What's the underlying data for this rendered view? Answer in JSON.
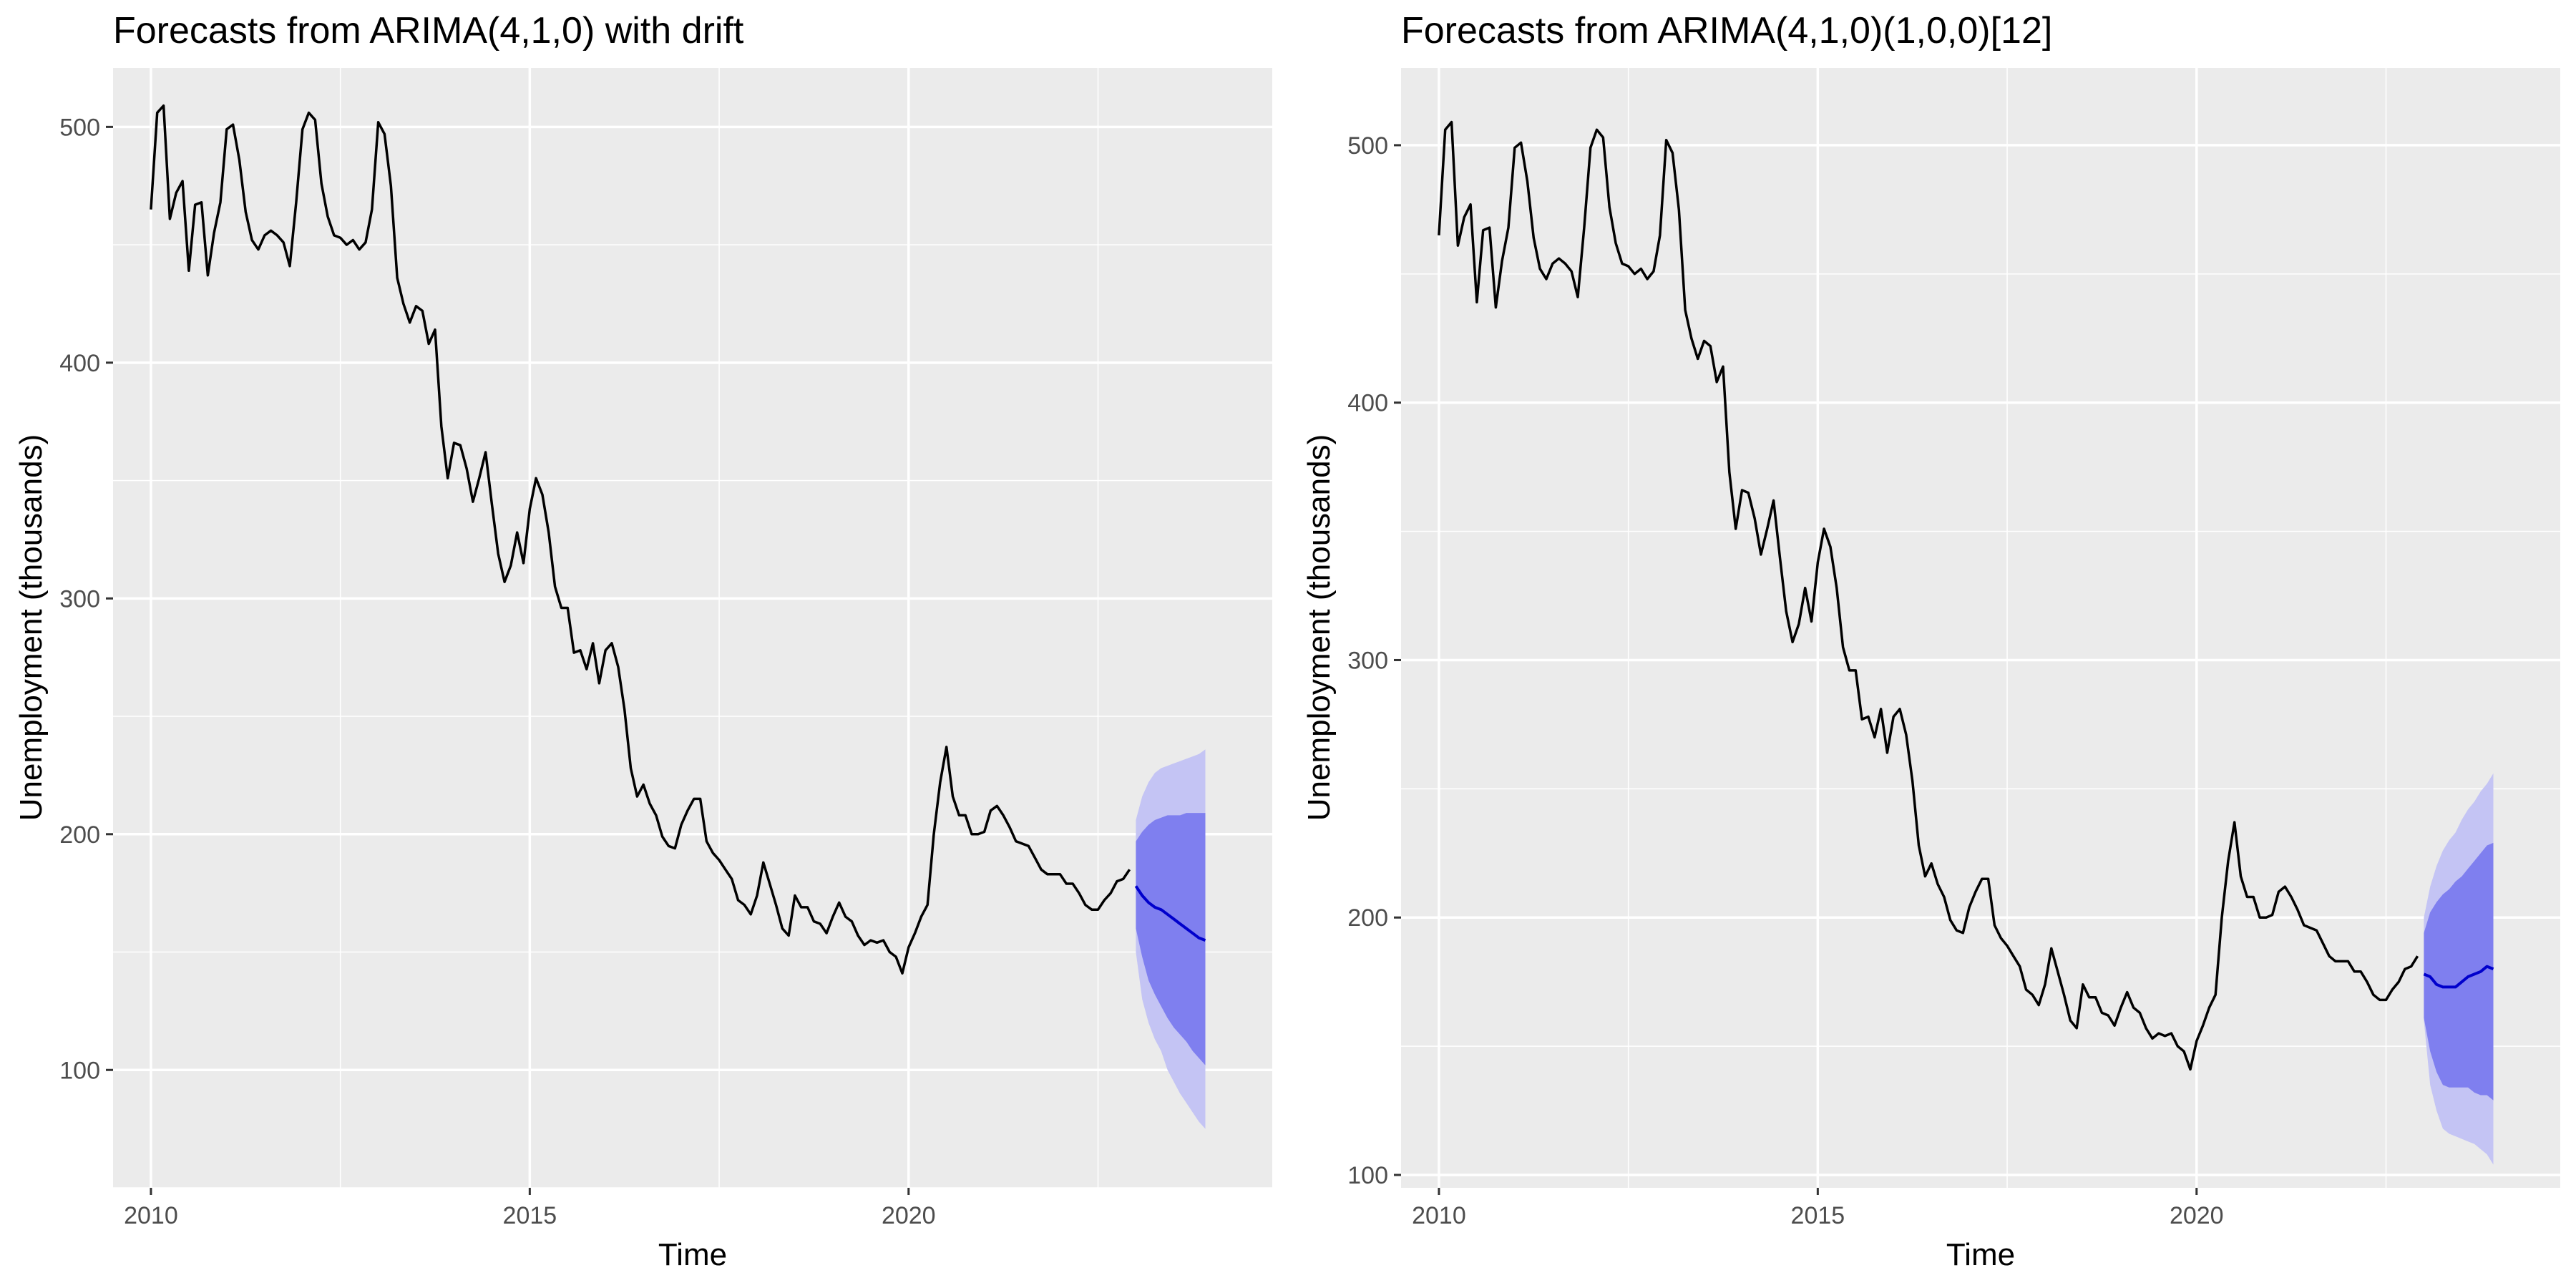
{
  "chart_data": [
    {
      "type": "line",
      "title": "Forecasts from ARIMA(4,1,0) with drift",
      "xlabel": "Time",
      "ylabel": "Unemployment (thousands)",
      "xlim": [
        2009.5,
        2024.8
      ],
      "ylim": [
        50,
        525
      ],
      "x_ticks": [
        2010,
        2015,
        2020
      ],
      "x_tick_labels": [
        "2010",
        "2015",
        "2020"
      ],
      "y_ticks": [
        100,
        200,
        300,
        400,
        500
      ],
      "y_tick_labels": [
        "100",
        "200",
        "300",
        "400",
        "500"
      ],
      "grid": true,
      "colors": {
        "panel": "#ebebeb",
        "grid": "#ffffff",
        "history": "#000000",
        "forecast": "#0000cc",
        "band80": "#7f7fef",
        "band95": "#c4c4f4"
      },
      "series": [
        {
          "role": "history",
          "x": [
            2010.0,
            2010.083,
            2010.167,
            2010.25,
            2010.333,
            2010.417,
            2010.5,
            2010.583,
            2010.667,
            2010.75,
            2010.833,
            2010.917,
            2011.0,
            2011.083,
            2011.167,
            2011.25,
            2011.333,
            2011.417,
            2011.5,
            2011.583,
            2011.667,
            2011.75,
            2011.833,
            2011.917,
            2012.0,
            2012.083,
            2012.167,
            2012.25,
            2012.333,
            2012.417,
            2012.5,
            2012.583,
            2012.667,
            2012.75,
            2012.833,
            2012.917,
            2013.0,
            2013.083,
            2013.167,
            2013.25,
            2013.333,
            2013.417,
            2013.5,
            2013.583,
            2013.667,
            2013.75,
            2013.833,
            2013.917,
            2014.0,
            2014.083,
            2014.167,
            2014.25,
            2014.333,
            2014.417,
            2014.5,
            2014.583,
            2014.667,
            2014.75,
            2014.833,
            2014.917,
            2015.0,
            2015.083,
            2015.167,
            2015.25,
            2015.333,
            2015.417,
            2015.5,
            2015.583,
            2015.667,
            2015.75,
            2015.833,
            2015.917,
            2016.0,
            2016.083,
            2016.167,
            2016.25,
            2016.333,
            2016.417,
            2016.5,
            2016.583,
            2016.667,
            2016.75,
            2016.833,
            2016.917,
            2017.0,
            2017.083,
            2017.167,
            2017.25,
            2017.333,
            2017.417,
            2017.5,
            2017.583,
            2017.667,
            2017.75,
            2017.833,
            2017.917,
            2018.0,
            2018.083,
            2018.167,
            2018.25,
            2018.333,
            2018.417,
            2018.5,
            2018.583,
            2018.667,
            2018.75,
            2018.833,
            2018.917,
            2019.0,
            2019.083,
            2019.167,
            2019.25,
            2019.333,
            2019.417,
            2019.5,
            2019.583,
            2019.667,
            2019.75,
            2019.833,
            2019.917,
            2020.0,
            2020.083,
            2020.167,
            2020.25,
            2020.333,
            2020.417,
            2020.5,
            2020.583,
            2020.667,
            2020.75,
            2020.833,
            2020.917,
            2021.0,
            2021.083,
            2021.167,
            2021.25,
            2021.333,
            2021.417,
            2021.5,
            2021.583,
            2021.667,
            2021.75,
            2021.833,
            2021.917,
            2022.0,
            2022.083,
            2022.167,
            2022.25,
            2022.333,
            2022.417,
            2022.5,
            2022.583,
            2022.667,
            2022.75,
            2022.833,
            2022.917
          ],
          "y": [
            465,
            506,
            509,
            461,
            472,
            477,
            439,
            467,
            468,
            437,
            455,
            468,
            499,
            501,
            486,
            464,
            452,
            448,
            454,
            456,
            454,
            451,
            441,
            468,
            499,
            506,
            503,
            476,
            462,
            454,
            453,
            450,
            452,
            448,
            451,
            465,
            502,
            497,
            475,
            436,
            425,
            417,
            424,
            422,
            408,
            414,
            373,
            351,
            366,
            365,
            355,
            341,
            351,
            362,
            340,
            319,
            307,
            314,
            328,
            315,
            338,
            351,
            344,
            328,
            305,
            296,
            296,
            277,
            278,
            270,
            281,
            264,
            278,
            281,
            271,
            253,
            228,
            216,
            221,
            213,
            208,
            199,
            195,
            194,
            204,
            210,
            215,
            215,
            197,
            192,
            189,
            185,
            181,
            172,
            170,
            166,
            174,
            188,
            179,
            170,
            160,
            157,
            174,
            169,
            169,
            163,
            162,
            158,
            165,
            171,
            165,
            163,
            157,
            153,
            155,
            154,
            155,
            150,
            148,
            141,
            152,
            158,
            165,
            170,
            200,
            222,
            237,
            216,
            208,
            208,
            200,
            200,
            201,
            210,
            212,
            208,
            203,
            197,
            196,
            195,
            190,
            185,
            183,
            183,
            183,
            179,
            179,
            175,
            170,
            168,
            168,
            172,
            175,
            180,
            181,
            185
          ]
        },
        {
          "role": "forecast",
          "x": [
            2023.0,
            2023.083,
            2023.167,
            2023.25,
            2023.333,
            2023.417,
            2023.5,
            2023.583,
            2023.667,
            2023.75,
            2023.833,
            2023.917
          ],
          "y": [
            178,
            174,
            171,
            169,
            168,
            166,
            164,
            162,
            160,
            158,
            156,
            155
          ],
          "lo80": [
            160,
            148,
            138,
            132,
            127,
            122,
            118,
            115,
            112,
            108,
            105,
            102
          ],
          "hi80": [
            197,
            201,
            204,
            206,
            207,
            208,
            208,
            208,
            209,
            209,
            209,
            209
          ],
          "lo95": [
            150,
            130,
            120,
            113,
            108,
            100,
            95,
            90,
            86,
            82,
            78,
            75
          ],
          "hi95": [
            206,
            216,
            222,
            226,
            228,
            229,
            230,
            231,
            232,
            233,
            234,
            236
          ]
        }
      ]
    },
    {
      "type": "line",
      "title": "Forecasts from ARIMA(4,1,0)(1,0,0)[12]",
      "xlabel": "Time",
      "ylabel": "Unemployment (thousands)",
      "xlim": [
        2009.5,
        2024.8
      ],
      "ylim": [
        95,
        530
      ],
      "x_ticks": [
        2010,
        2015,
        2020
      ],
      "x_tick_labels": [
        "2010",
        "2015",
        "2020"
      ],
      "y_ticks": [
        100,
        200,
        300,
        400,
        500
      ],
      "y_tick_labels": [
        "100",
        "200",
        "300",
        "400",
        "500"
      ],
      "grid": true,
      "colors": {
        "panel": "#ebebeb",
        "grid": "#ffffff",
        "history": "#000000",
        "forecast": "#0000cc",
        "band80": "#7f7fef",
        "band95": "#c4c4f4"
      },
      "series": [
        {
          "role": "history",
          "x": [
            2010.0,
            2010.083,
            2010.167,
            2010.25,
            2010.333,
            2010.417,
            2010.5,
            2010.583,
            2010.667,
            2010.75,
            2010.833,
            2010.917,
            2011.0,
            2011.083,
            2011.167,
            2011.25,
            2011.333,
            2011.417,
            2011.5,
            2011.583,
            2011.667,
            2011.75,
            2011.833,
            2011.917,
            2012.0,
            2012.083,
            2012.167,
            2012.25,
            2012.333,
            2012.417,
            2012.5,
            2012.583,
            2012.667,
            2012.75,
            2012.833,
            2012.917,
            2013.0,
            2013.083,
            2013.167,
            2013.25,
            2013.333,
            2013.417,
            2013.5,
            2013.583,
            2013.667,
            2013.75,
            2013.833,
            2013.917,
            2014.0,
            2014.083,
            2014.167,
            2014.25,
            2014.333,
            2014.417,
            2014.5,
            2014.583,
            2014.667,
            2014.75,
            2014.833,
            2014.917,
            2015.0,
            2015.083,
            2015.167,
            2015.25,
            2015.333,
            2015.417,
            2015.5,
            2015.583,
            2015.667,
            2015.75,
            2015.833,
            2015.917,
            2016.0,
            2016.083,
            2016.167,
            2016.25,
            2016.333,
            2016.417,
            2016.5,
            2016.583,
            2016.667,
            2016.75,
            2016.833,
            2016.917,
            2017.0,
            2017.083,
            2017.167,
            2017.25,
            2017.333,
            2017.417,
            2017.5,
            2017.583,
            2017.667,
            2017.75,
            2017.833,
            2017.917,
            2018.0,
            2018.083,
            2018.167,
            2018.25,
            2018.333,
            2018.417,
            2018.5,
            2018.583,
            2018.667,
            2018.75,
            2018.833,
            2018.917,
            2019.0,
            2019.083,
            2019.167,
            2019.25,
            2019.333,
            2019.417,
            2019.5,
            2019.583,
            2019.667,
            2019.75,
            2019.833,
            2019.917,
            2020.0,
            2020.083,
            2020.167,
            2020.25,
            2020.333,
            2020.417,
            2020.5,
            2020.583,
            2020.667,
            2020.75,
            2020.833,
            2020.917,
            2021.0,
            2021.083,
            2021.167,
            2021.25,
            2021.333,
            2021.417,
            2021.5,
            2021.583,
            2021.667,
            2021.75,
            2021.833,
            2021.917,
            2022.0,
            2022.083,
            2022.167,
            2022.25,
            2022.333,
            2022.417,
            2022.5,
            2022.583,
            2022.667,
            2022.75,
            2022.833,
            2022.917
          ],
          "y": [
            465,
            506,
            509,
            461,
            472,
            477,
            439,
            467,
            468,
            437,
            455,
            468,
            499,
            501,
            486,
            464,
            452,
            448,
            454,
            456,
            454,
            451,
            441,
            468,
            499,
            506,
            503,
            476,
            462,
            454,
            453,
            450,
            452,
            448,
            451,
            465,
            502,
            497,
            475,
            436,
            425,
            417,
            424,
            422,
            408,
            414,
            373,
            351,
            366,
            365,
            355,
            341,
            351,
            362,
            340,
            319,
            307,
            314,
            328,
            315,
            338,
            351,
            344,
            328,
            305,
            296,
            296,
            277,
            278,
            270,
            281,
            264,
            278,
            281,
            271,
            253,
            228,
            216,
            221,
            213,
            208,
            199,
            195,
            194,
            204,
            210,
            215,
            215,
            197,
            192,
            189,
            185,
            181,
            172,
            170,
            166,
            174,
            188,
            179,
            170,
            160,
            157,
            174,
            169,
            169,
            163,
            162,
            158,
            165,
            171,
            165,
            163,
            157,
            153,
            155,
            154,
            155,
            150,
            148,
            141,
            152,
            158,
            165,
            170,
            200,
            222,
            237,
            216,
            208,
            208,
            200,
            200,
            201,
            210,
            212,
            208,
            203,
            197,
            196,
            195,
            190,
            185,
            183,
            183,
            183,
            179,
            179,
            175,
            170,
            168,
            168,
            172,
            175,
            180,
            181,
            185
          ]
        },
        {
          "role": "forecast",
          "x": [
            2023.0,
            2023.083,
            2023.167,
            2023.25,
            2023.333,
            2023.417,
            2023.5,
            2023.583,
            2023.667,
            2023.75,
            2023.833,
            2023.917
          ],
          "y": [
            178,
            177,
            174,
            173,
            173,
            173,
            175,
            177,
            178,
            179,
            181,
            180
          ],
          "lo80": [
            161,
            148,
            140,
            135,
            134,
            134,
            134,
            134,
            132,
            131,
            131,
            129
          ],
          "hi80": [
            194,
            202,
            206,
            209,
            211,
            214,
            216,
            219,
            222,
            225,
            228,
            229
          ],
          "lo95": [
            160,
            135,
            125,
            118,
            116,
            115,
            114,
            113,
            112,
            110,
            108,
            104
          ],
          "hi95": [
            200,
            212,
            220,
            226,
            230,
            233,
            238,
            242,
            245,
            249,
            252,
            256
          ]
        }
      ]
    }
  ]
}
